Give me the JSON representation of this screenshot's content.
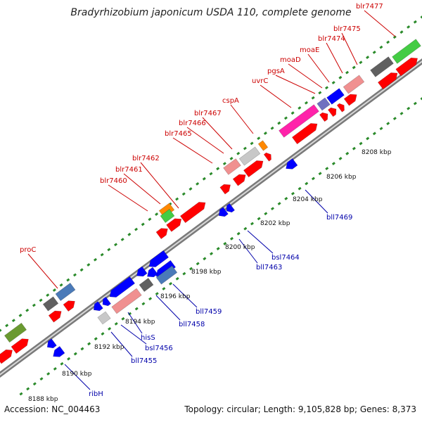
{
  "header": {
    "title": "Bradyrhizobium japonicum USDA 110, complete genome"
  },
  "footer": {
    "accession": "Accession: NC_004463",
    "summary": "Topology: circular; Length: 9,105,828 bp; Genes: 8,373"
  },
  "colors": {
    "backbone": "#8a8a8a",
    "tick": "#2a8a2a",
    "forward_label": "#cc0000",
    "reverse_label": "#0000aa",
    "cds_forward": "#ff0000",
    "cds_reverse": "#0000ff",
    "pink": "#f09090",
    "magenta": "#ff22aa",
    "dark_gray": "#606060",
    "light_gray": "#c8c8c8",
    "steel_blue": "#4a7ab8",
    "lavender": "#7070c0",
    "orange": "#ff8800",
    "green": "#44cc44",
    "olive": "#6a9a30"
  },
  "kbp_ticks": [
    "8188 kbp",
    "8190 kbp",
    "8192 kbp",
    "8194 kbp",
    "8196 kbp",
    "8198 kbp",
    "8200 kbp",
    "8202 kbp",
    "8204 kbp",
    "8206 kbp",
    "8208 kbp"
  ],
  "forward_labels": [
    "blr7477",
    "blr7475",
    "blr7474",
    "moaE",
    "moaD",
    "pgsA",
    "uvrC",
    "cspA",
    "blr7467",
    "blr7466",
    "blr7465",
    "blr7462",
    "blr7461",
    "blr7460",
    "proC"
  ],
  "reverse_labels": [
    "bll7469",
    "bsl7464",
    "bll7463",
    "bll7459",
    "bll7458",
    "hisS",
    "bsl7456",
    "bll7455",
    "ribH"
  ]
}
